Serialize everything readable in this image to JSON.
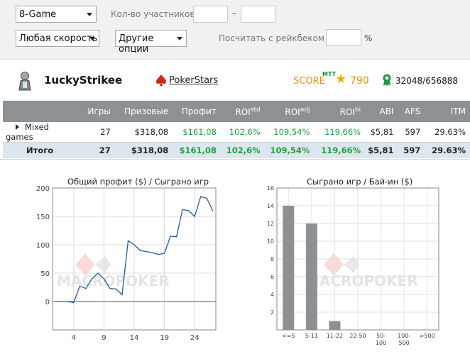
{
  "filters": {
    "game": "8-Game",
    "participants_label": "Кол-во участников",
    "participants_from": "",
    "participants_dash": "–",
    "participants_to": "",
    "speed": "Любая скорость",
    "other": "Другие опции",
    "rakeback_label": "Посчитать с рейкбеком",
    "rakeback_value": "",
    "rakeback_unit": "%"
  },
  "player": {
    "name": "1uckyStrikee",
    "room": "PokerStars",
    "score_label": "SCORE",
    "score_sup": "MTT",
    "score_value": "790",
    "rank": "32048/656888",
    "icons": [
      "avatar-icon",
      "pokerstars-spade-icon",
      "star-icon",
      "rank-badge-icon"
    ]
  },
  "stats": {
    "headers": [
      "",
      "Игры",
      "Призовые",
      "Профит",
      "ROI",
      "ROI",
      "ROI",
      "ABI",
      "AFS",
      "ITM"
    ],
    "header_sups": [
      "",
      "",
      "",
      "",
      "std",
      "adj",
      "bi",
      "",
      "",
      ""
    ],
    "rows": [
      [
        "Mixed games",
        "27",
        "$318,08",
        "$161,08",
        "102,6%",
        "109,54%",
        "119,66%",
        "$5,81",
        "597",
        "29.63%"
      ]
    ],
    "total": [
      "Итого",
      "27",
      "$318,08",
      "$161,08",
      "102,6%",
      "109,54%",
      "119,66%",
      "$5,81",
      "597",
      "29.63%"
    ]
  },
  "chart_data": [
    {
      "type": "line",
      "title": "Общий профит ($) / Сыграно игр",
      "xlabel": "",
      "ylabel": "",
      "x_ticks": [
        4,
        9,
        14,
        19,
        24
      ],
      "y_ticks": [
        0,
        50,
        100,
        150,
        200
      ],
      "xlim": [
        0.5,
        27.5
      ],
      "ylim": [
        -50,
        200
      ],
      "grid": true,
      "x": [
        1,
        2,
        3,
        4,
        5,
        6,
        7,
        8,
        9,
        10,
        11,
        12,
        13,
        14,
        15,
        16,
        17,
        18,
        19,
        20,
        21,
        22,
        23,
        24,
        25,
        26,
        27
      ],
      "series": [
        {
          "values": [
            0,
            0,
            0,
            -2,
            27,
            23,
            40,
            50,
            40,
            23,
            22,
            12,
            107,
            100,
            90,
            88,
            86,
            83,
            85,
            115,
            114,
            162,
            160,
            150,
            185,
            182,
            160
          ]
        }
      ],
      "watermark": "MACROPOKER"
    },
    {
      "type": "bar",
      "title": "Сыграно игр / Бай-ин  ($)",
      "xlabel": "",
      "ylabel": "",
      "categories": [
        "<=5",
        "5-11",
        "11-22",
        "22-50",
        "50-100",
        "100-500",
        ">500"
      ],
      "category_lines": [
        [
          "<=5"
        ],
        [
          "5-11"
        ],
        [
          "11-22"
        ],
        [
          "22-50"
        ],
        [
          "50-",
          "100"
        ],
        [
          "100-",
          "500"
        ],
        [
          ">500"
        ]
      ],
      "values": [
        14,
        12,
        1,
        0,
        0,
        0,
        0
      ],
      "y_ticks": [
        2,
        4,
        6,
        8,
        10,
        12,
        14,
        16
      ],
      "ylim": [
        0,
        16
      ],
      "grid": true,
      "watermark": "MACROPOKER"
    }
  ]
}
